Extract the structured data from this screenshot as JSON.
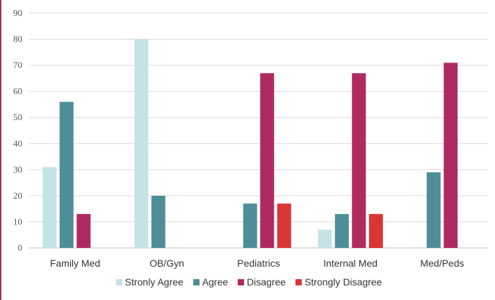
{
  "chart_data": {
    "type": "bar",
    "categories": [
      "Family Med",
      "OB/Gyn",
      "Pediatrics",
      "Internal Med",
      "Med/Peds"
    ],
    "series": [
      {
        "name": "Stronly Agree",
        "color": "#c5e3e6",
        "values": [
          31,
          80,
          0,
          7,
          0
        ]
      },
      {
        "name": "Agree",
        "color": "#4e8e98",
        "values": [
          56,
          20,
          17,
          13,
          29
        ]
      },
      {
        "name": "Disagree",
        "color": "#b02a62",
        "values": [
          13,
          0,
          67,
          67,
          71
        ]
      },
      {
        "name": "Strongly Disagree",
        "color": "#d93535",
        "values": [
          0,
          0,
          17,
          13,
          0
        ]
      }
    ],
    "ylim": [
      0,
      90
    ],
    "yticks": [
      "0",
      "10",
      "20",
      "30",
      "40",
      "50",
      "60",
      "70",
      "80",
      "90"
    ],
    "grid": true,
    "legend_position": "bottom"
  }
}
